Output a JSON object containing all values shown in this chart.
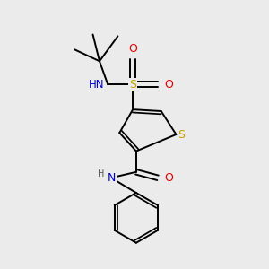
{
  "background_color": "#ebebeb",
  "S_thiophene_color": "#c8a000",
  "S_sulfonyl_color": "#c8a000",
  "N_color": "#0000cc",
  "O_color": "#dd0000",
  "C_color": "#000000",
  "H_color": "#555555",
  "bond_color": "#000000",
  "bond_lw": 1.4,
  "xlim": [
    0,
    3
  ],
  "ylim": [
    0,
    3.2
  ]
}
